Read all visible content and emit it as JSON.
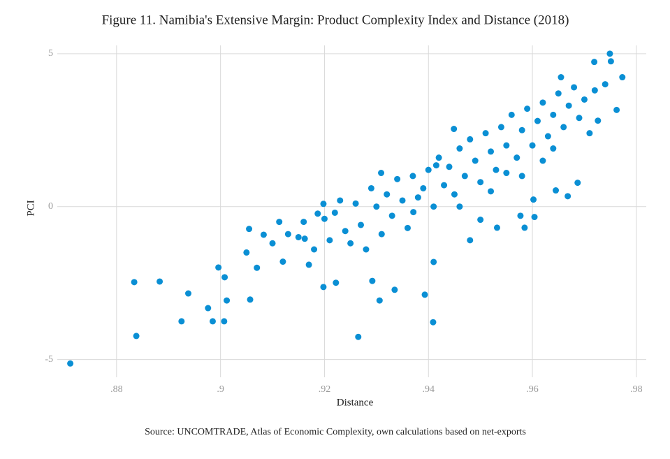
{
  "chart_data": {
    "type": "scatter",
    "title": "Figure 11. Namibia's Extensive Margin: Product Complexity Index and Distance (2018)",
    "x_label": "Distance",
    "y_label": "PCI",
    "source": "Source: UNCOMTRADE, Atlas of Economic Complexity, own calculations based on net-exports",
    "color": "#0a8fd4",
    "grid": true,
    "xlim": [
      0.8686,
      0.9819
    ],
    "ylim": [
      -5.58,
      5.27
    ],
    "xticks": [
      {
        "value": 0.88,
        "label": ".88"
      },
      {
        "value": 0.9,
        "label": ".9"
      },
      {
        "value": 0.92,
        "label": ".92"
      },
      {
        "value": 0.94,
        "label": ".94"
      },
      {
        "value": 0.96,
        "label": ".96"
      },
      {
        "value": 0.98,
        "label": ".98"
      }
    ],
    "yticks": [
      -5,
      0,
      5
    ],
    "x": [
      0.8711,
      0.8834,
      0.8838,
      0.8883,
      0.8925,
      0.8938,
      0.8976,
      0.8985,
      0.9007,
      0.8996,
      0.9008,
      0.9012,
      0.9055,
      0.9057,
      0.9083,
      0.9113,
      0.9162,
      0.9187,
      0.9198,
      0.9198,
      0.9222,
      0.9265,
      0.9306,
      0.9292,
      0.9309,
      0.9335,
      0.9371,
      0.9393,
      0.941,
      0.9409,
      0.9415,
      0.9449,
      0.948,
      0.95,
      0.9532,
      0.9577,
      0.9585,
      0.9602,
      0.9604,
      0.9645,
      0.9668,
      0.9687,
      0.9719,
      0.9749,
      0.9751,
      0.9773,
      0.9762,
      0.9726,
      0.9655,
      0.905,
      0.907,
      0.91,
      0.912,
      0.913,
      0.915,
      0.916,
      0.917,
      0.918,
      0.92,
      0.921,
      0.922,
      0.923,
      0.924,
      0.925,
      0.926,
      0.927,
      0.928,
      0.929,
      0.93,
      0.931,
      0.932,
      0.933,
      0.934,
      0.935,
      0.936,
      0.937,
      0.938,
      0.939,
      0.94,
      0.941,
      0.942,
      0.943,
      0.944,
      0.945,
      0.946,
      0.947,
      0.948,
      0.949,
      0.95,
      0.951,
      0.952,
      0.953,
      0.954,
      0.955,
      0.956,
      0.957,
      0.958,
      0.959,
      0.96,
      0.961,
      0.962,
      0.963,
      0.964,
      0.965,
      0.966,
      0.967,
      0.968,
      0.969,
      0.97,
      0.971,
      0.972,
      0.974,
      0.946,
      0.952,
      0.958,
      0.962,
      0.964,
      0.955
    ],
    "values": [
      -5.13,
      -2.47,
      -4.23,
      -2.45,
      -3.75,
      -2.84,
      -3.32,
      -3.75,
      -3.75,
      -1.99,
      -2.31,
      -3.07,
      -0.73,
      -3.04,
      -0.92,
      -0.5,
      -1.05,
      -0.23,
      0.09,
      -2.63,
      -2.49,
      -4.26,
      -3.07,
      -2.43,
      1.1,
      -2.72,
      -0.18,
      -2.88,
      -1.81,
      -3.78,
      1.35,
      2.54,
      -1.1,
      -0.43,
      -0.69,
      -0.3,
      -0.69,
      0.23,
      -0.34,
      0.53,
      0.34,
      0.78,
      4.73,
      5.0,
      4.75,
      4.23,
      3.16,
      2.81,
      4.23,
      -1.5,
      -2.0,
      -1.2,
      -1.8,
      -0.9,
      -1.0,
      -0.5,
      -1.9,
      -1.4,
      -0.4,
      -1.1,
      -0.2,
      0.2,
      -0.8,
      -1.2,
      0.1,
      -0.6,
      -1.4,
      0.6,
      0.0,
      -0.9,
      0.4,
      -0.3,
      0.9,
      0.2,
      -0.7,
      1.0,
      0.3,
      0.6,
      1.2,
      0.0,
      1.6,
      0.7,
      1.3,
      0.4,
      1.9,
      1.0,
      2.2,
      1.5,
      0.8,
      2.4,
      1.8,
      1.2,
      2.6,
      2.0,
      3.0,
      1.6,
      2.5,
      3.2,
      2.0,
      2.8,
      3.4,
      2.3,
      3.0,
      3.7,
      2.6,
      3.3,
      3.9,
      2.9,
      3.5,
      2.4,
      3.8,
      4.0,
      0.0,
      0.5,
      1.0,
      1.5,
      1.9,
      1.1
    ]
  }
}
